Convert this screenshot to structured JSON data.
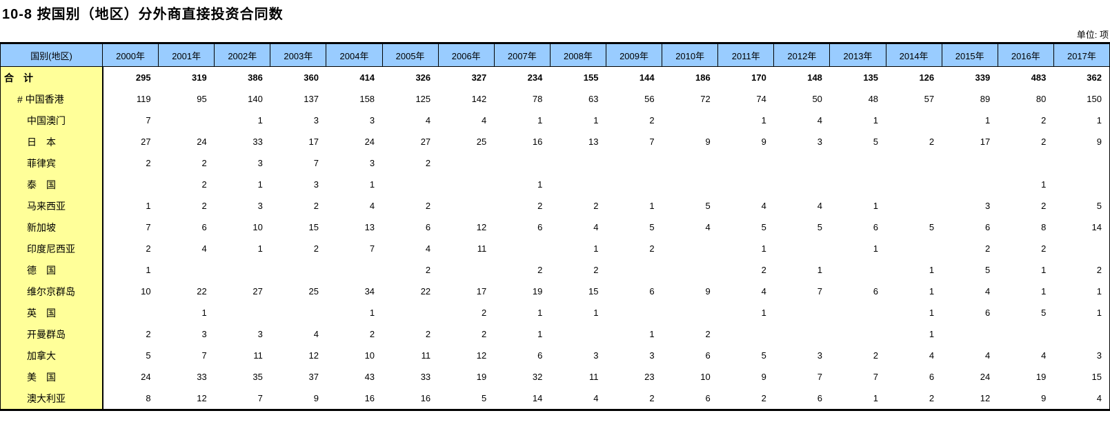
{
  "title": "10-8 按国别（地区）分外商直接投资合同数",
  "unit_label": "单位: 项",
  "colors": {
    "header_bg": "#99CCFF",
    "label_col_bg": "#FFFF99",
    "border": "#000000",
    "text": "#000000"
  },
  "table": {
    "corner_header": "国别(地区)",
    "columns": [
      "2000年",
      "2001年",
      "2002年",
      "2003年",
      "2004年",
      "2005年",
      "2006年",
      "2007年",
      "2008年",
      "2009年",
      "2010年",
      "2011年",
      "2012年",
      "2013年",
      "2014年",
      "2015年",
      "2016年",
      "2017年"
    ],
    "rows": [
      {
        "label": "合　计",
        "indent": 0,
        "bold": true,
        "values": [
          "295",
          "319",
          "386",
          "360",
          "414",
          "326",
          "327",
          "234",
          "155",
          "144",
          "186",
          "170",
          "148",
          "135",
          "126",
          "339",
          "483",
          "362"
        ]
      },
      {
        "label": "# 中国香港",
        "indent": 1,
        "bold": false,
        "values": [
          "119",
          "95",
          "140",
          "137",
          "158",
          "125",
          "142",
          "78",
          "63",
          "56",
          "72",
          "74",
          "50",
          "48",
          "57",
          "89",
          "80",
          "150"
        ]
      },
      {
        "label": "中国澳门",
        "indent": 2,
        "bold": false,
        "values": [
          "7",
          "",
          "1",
          "3",
          "3",
          "4",
          "4",
          "1",
          "1",
          "2",
          "",
          "1",
          "4",
          "1",
          "",
          "1",
          "2",
          "1"
        ]
      },
      {
        "label": "日　本",
        "indent": 2,
        "bold": false,
        "values": [
          "27",
          "24",
          "33",
          "17",
          "24",
          "27",
          "25",
          "16",
          "13",
          "7",
          "9",
          "9",
          "3",
          "5",
          "2",
          "17",
          "2",
          "9"
        ]
      },
      {
        "label": "菲律宾",
        "indent": 2,
        "bold": false,
        "values": [
          "2",
          "2",
          "3",
          "7",
          "3",
          "2",
          "",
          "",
          "",
          "",
          "",
          "",
          "",
          "",
          "",
          "",
          "",
          ""
        ]
      },
      {
        "label": "泰　国",
        "indent": 2,
        "bold": false,
        "values": [
          "",
          "2",
          "1",
          "3",
          "1",
          "",
          "",
          "1",
          "",
          "",
          "",
          "",
          "",
          "",
          "",
          "",
          "1",
          ""
        ]
      },
      {
        "label": "马来西亚",
        "indent": 2,
        "bold": false,
        "values": [
          "1",
          "2",
          "3",
          "2",
          "4",
          "2",
          "",
          "2",
          "2",
          "1",
          "5",
          "4",
          "4",
          "1",
          "",
          "3",
          "2",
          "5"
        ]
      },
      {
        "label": "新加坡",
        "indent": 2,
        "bold": false,
        "values": [
          "7",
          "6",
          "10",
          "15",
          "13",
          "6",
          "12",
          "6",
          "4",
          "5",
          "4",
          "5",
          "5",
          "6",
          "5",
          "6",
          "8",
          "14"
        ]
      },
      {
        "label": "印度尼西亚",
        "indent": 2,
        "bold": false,
        "values": [
          "2",
          "4",
          "1",
          "2",
          "7",
          "4",
          "11",
          "",
          "1",
          "2",
          "",
          "1",
          "",
          "1",
          "",
          "2",
          "2",
          ""
        ]
      },
      {
        "label": "德　国",
        "indent": 2,
        "bold": false,
        "values": [
          "1",
          "",
          "",
          "",
          "",
          "2",
          "",
          "2",
          "2",
          "",
          "",
          "2",
          "1",
          "",
          "1",
          "5",
          "1",
          "2"
        ]
      },
      {
        "label": "维尔京群岛",
        "indent": 2,
        "bold": false,
        "values": [
          "10",
          "22",
          "27",
          "25",
          "34",
          "22",
          "17",
          "19",
          "15",
          "6",
          "9",
          "4",
          "7",
          "6",
          "1",
          "4",
          "1",
          "1"
        ]
      },
      {
        "label": "英　国",
        "indent": 2,
        "bold": false,
        "values": [
          "",
          "1",
          "",
          "",
          "1",
          "",
          "2",
          "1",
          "1",
          "",
          "",
          "1",
          "",
          "",
          "1",
          "6",
          "5",
          "1"
        ]
      },
      {
        "label": "开曼群岛",
        "indent": 2,
        "bold": false,
        "values": [
          "2",
          "3",
          "3",
          "4",
          "2",
          "2",
          "2",
          "1",
          "",
          "1",
          "2",
          "",
          "",
          "",
          "1",
          "",
          "",
          ""
        ]
      },
      {
        "label": "加拿大",
        "indent": 2,
        "bold": false,
        "values": [
          "5",
          "7",
          "11",
          "12",
          "10",
          "11",
          "12",
          "6",
          "3",
          "3",
          "6",
          "5",
          "3",
          "2",
          "4",
          "4",
          "4",
          "3"
        ]
      },
      {
        "label": "美　国",
        "indent": 2,
        "bold": false,
        "values": [
          "24",
          "33",
          "35",
          "37",
          "43",
          "33",
          "19",
          "32",
          "11",
          "23",
          "10",
          "9",
          "7",
          "7",
          "6",
          "24",
          "19",
          "15"
        ]
      },
      {
        "label": "澳大利亚",
        "indent": 2,
        "bold": false,
        "values": [
          "8",
          "12",
          "7",
          "9",
          "16",
          "16",
          "5",
          "14",
          "4",
          "2",
          "6",
          "2",
          "6",
          "1",
          "2",
          "12",
          "9",
          "4"
        ]
      }
    ]
  }
}
